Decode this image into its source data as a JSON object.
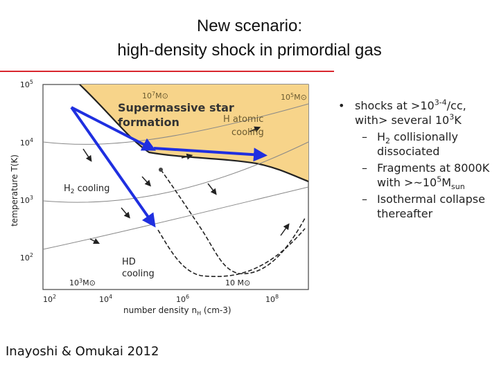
{
  "title": [
    "New scenario:",
    "high-density shock in primordial gas"
  ],
  "figure": {
    "y_axis_label": "temperature T(K)",
    "x_axis_label": {
      "text": "number density n",
      "sub": "H",
      "unit": " (cm-3)"
    },
    "yticks": [
      {
        "base": "10",
        "exp": "5"
      },
      {
        "base": "10",
        "exp": "4"
      },
      {
        "base": "10",
        "exp": "3"
      },
      {
        "base": "10",
        "exp": "2"
      }
    ],
    "xticks": [
      {
        "base": "10",
        "exp": "2"
      },
      {
        "base": "10",
        "exp": "4"
      },
      {
        "base": "10",
        "exp": "6"
      },
      {
        "base": "10",
        "exp": "8"
      }
    ],
    "mass_labels": [
      {
        "base": "10",
        "exp": "7",
        "unit": "M⊙"
      },
      {
        "base": "10",
        "exp": "5",
        "unit": "M⊙"
      },
      {
        "base": "10",
        "exp": "3",
        "unit": "M⊙"
      },
      {
        "base": "10 ",
        "unit": "M⊙"
      }
    ],
    "regions": {
      "atomic": [
        "H atomic",
        "cooling"
      ],
      "h2": {
        "text": "H",
        "sub": "2",
        "rest": " cooling"
      },
      "hd": [
        "HD",
        "cooling"
      ]
    },
    "overlay": [
      "Supermassive star",
      "formation"
    ]
  },
  "bullets": {
    "main": [
      {
        "t": "shocks at >10"
      },
      {
        "sup": "3-4"
      },
      {
        "t": "/cc, with> several 10"
      },
      {
        "sup": "3"
      },
      {
        "t": "K"
      }
    ],
    "sub": [
      [
        {
          "t": "H"
        },
        {
          "sub": "2"
        },
        {
          "t": " collisionally dissociated"
        }
      ],
      [
        {
          "t": "Fragments at 8000K with >~10"
        },
        {
          "sup": "5"
        },
        {
          "t": "M"
        },
        {
          "sub": "sun"
        }
      ],
      [
        {
          "t": "Isothermal collapse thereafter"
        }
      ]
    ]
  },
  "citation": "Inayoshi & Omukai 2012"
}
